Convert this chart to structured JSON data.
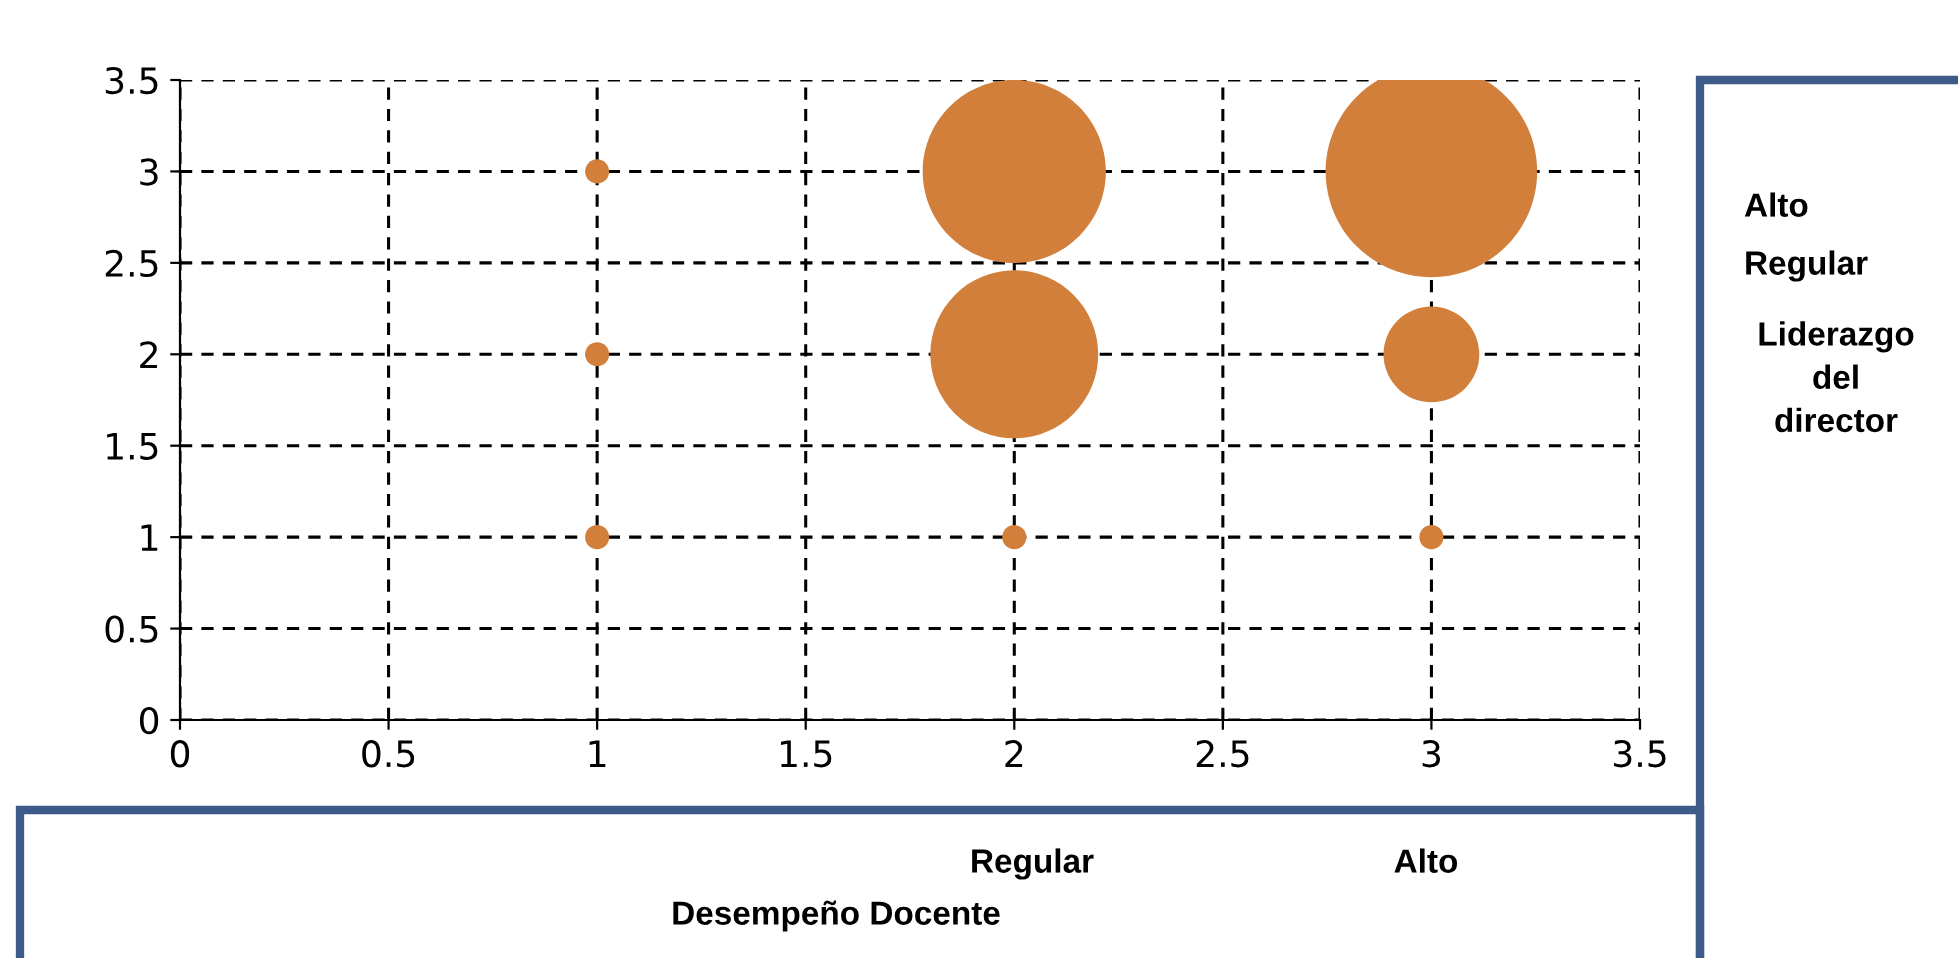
{
  "chart_data": {
    "type": "bubble",
    "xlabel": "Desempeño Docente",
    "ylabel": "Liderazgo del director",
    "annotations": [
      "Regular",
      "Alto",
      "Alto",
      "Regular"
    ],
    "x": [
      1,
      1,
      1,
      2,
      2,
      2,
      3,
      3,
      3
    ],
    "series": [
      {
        "color": "#d27f3c",
        "values": [
          1,
          2,
          3,
          1,
          2,
          3,
          1,
          2,
          3
        ],
        "sizes": [
          0.013,
          0.013,
          0.013,
          0.013,
          0.63,
          0.75,
          0.013,
          0.205,
          1
        ]
      }
    ],
    "xlim": [
      0,
      3.5
    ],
    "ylim": [
      0,
      3.5
    ],
    "xticks": [
      0,
      0.5,
      1,
      1.5,
      2,
      2.5,
      3,
      3.5
    ],
    "yticks": [
      0,
      0.5,
      1,
      1.5,
      2,
      2.5,
      3,
      3.5
    ],
    "grid": true
  }
}
